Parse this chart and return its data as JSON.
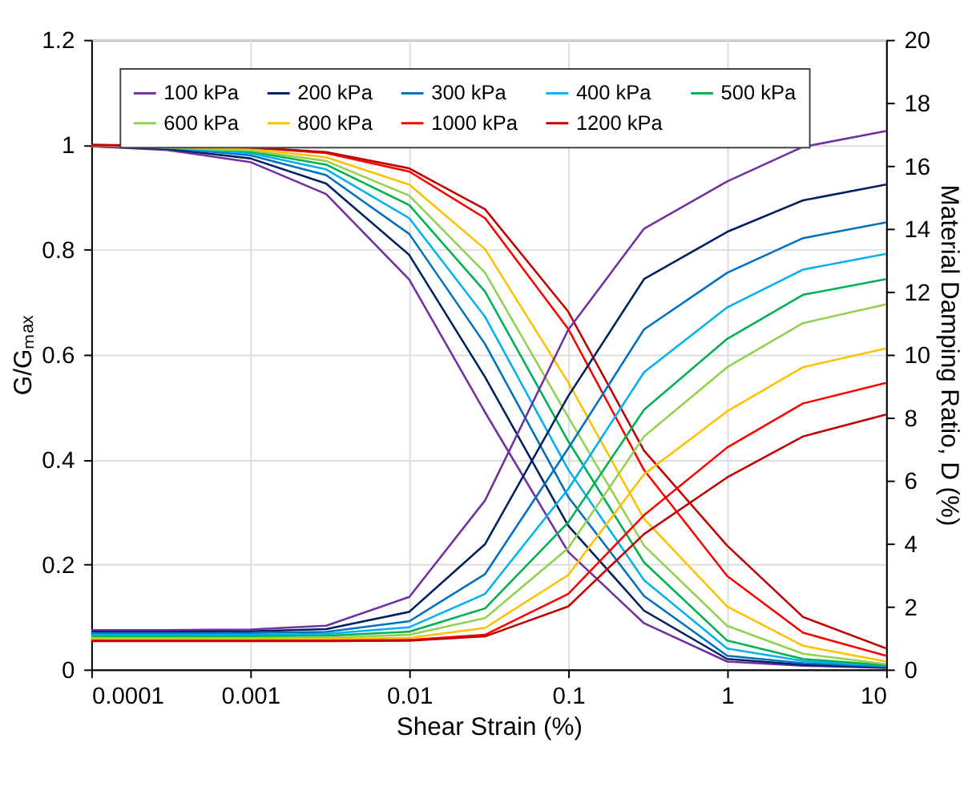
{
  "chart_data": {
    "type": "line",
    "xlabel": "Shear Strain (%)",
    "ylabel": "G/Gₘₐₓ",
    "y2label": "Material Damping Ratio, D (%)",
    "log": "x",
    "xlim": [
      0.0001,
      10
    ],
    "xticks": [
      0.0001,
      0.001,
      0.01,
      0.1,
      1,
      10
    ],
    "ylim": [
      0,
      1.2
    ],
    "yticks": [
      0,
      0.2,
      0.4,
      0.6,
      0.8,
      1,
      1.2
    ],
    "y2lim": [
      0,
      20
    ],
    "y2ticks": [
      0,
      2,
      4,
      6,
      8,
      10,
      12,
      14,
      16,
      18,
      20
    ],
    "grid": true,
    "legend": "top left",
    "x": [
      0.0001,
      0.0003,
      0.001,
      0.003,
      0.01,
      0.03,
      0.1,
      0.3,
      1,
      3,
      10
    ],
    "series": [
      {
        "name": "100 kPa",
        "color": "#7030a0",
        "values": [
          0.997,
          0.99,
          0.967,
          0.906,
          0.743,
          0.49,
          0.224,
          0.088,
          0.015,
          0.007,
          0.003
        ]
      },
      {
        "name": "200 kPa",
        "color": "#002060",
        "values": [
          0.997,
          0.992,
          0.974,
          0.926,
          0.79,
          0.557,
          0.274,
          0.112,
          0.02,
          0.009,
          0.004
        ]
      },
      {
        "name": "300 kPa",
        "color": "#0070c0",
        "values": [
          0.998,
          0.994,
          0.98,
          0.942,
          0.83,
          0.62,
          0.329,
          0.14,
          0.026,
          0.012,
          0.005
        ]
      },
      {
        "name": "400 kPa",
        "color": "#00b0f0",
        "values": [
          0.998,
          0.995,
          0.984,
          0.953,
          0.86,
          0.672,
          0.381,
          0.17,
          0.04,
          0.016,
          0.007
        ]
      },
      {
        "name": "500 kPa",
        "color": "#00b050",
        "values": [
          0.999,
          0.996,
          0.987,
          0.962,
          0.885,
          0.72,
          0.435,
          0.204,
          0.055,
          0.02,
          0.008
        ]
      },
      {
        "name": "600 kPa",
        "color": "#92d050",
        "x": [
          0.0001,
          0.001,
          0.003,
          0.01,
          0.03,
          0.1,
          0.3,
          1,
          3,
          10
        ],
        "values": [
          0.999,
          0.989,
          0.969,
          0.903,
          0.756,
          0.481,
          0.236,
          0.083,
          0.03,
          0.01
        ]
      },
      {
        "name": "800 kPa",
        "color": "#ffc000",
        "x": [
          0.0001,
          0.001,
          0.003,
          0.01,
          0.03,
          0.1,
          0.3,
          1,
          3,
          10
        ],
        "values": [
          0.999,
          0.992,
          0.976,
          0.924,
          0.801,
          0.547,
          0.287,
          0.12,
          0.045,
          0.015
        ]
      },
      {
        "name": "1000 kPa",
        "color": "#ff0000",
        "x": [
          0.0001,
          0.001,
          0.003,
          0.01,
          0.03,
          0.1,
          0.3,
          1,
          3,
          10
        ],
        "values": [
          0.999,
          0.995,
          0.984,
          0.949,
          0.86,
          0.649,
          0.38,
          0.178,
          0.07,
          0.026
        ]
      },
      {
        "name": "1200 kPa",
        "color": "#c00000",
        "x": [
          0.0001,
          0.001,
          0.003,
          0.01,
          0.03,
          0.1,
          0.3,
          1,
          3,
          10
        ],
        "values": [
          1.0,
          0.995,
          0.986,
          0.955,
          0.877,
          0.682,
          0.417,
          0.236,
          0.1,
          0.04
        ]
      },
      {
        "color": "#7030a0",
        "axis": "y2",
        "values": [
          1.25,
          1.25,
          1.27,
          1.39,
          2.3,
          5.37,
          10.79,
          14.0,
          15.5,
          16.6,
          17.1
        ]
      },
      {
        "color": "#002060",
        "axis": "y2",
        "values": [
          1.2,
          1.2,
          1.21,
          1.28,
          1.83,
          3.98,
          8.68,
          12.4,
          13.9,
          14.9,
          15.4
        ]
      },
      {
        "color": "#0070c0",
        "axis": "y2",
        "values": [
          1.15,
          1.15,
          1.16,
          1.19,
          1.53,
          3.03,
          7.02,
          10.8,
          12.6,
          13.7,
          14.2
        ]
      },
      {
        "color": "#00b0f0",
        "axis": "y2",
        "values": [
          1.1,
          1.1,
          1.1,
          1.13,
          1.34,
          2.4,
          5.73,
          9.44,
          11.5,
          12.7,
          13.2
        ]
      },
      {
        "color": "#00b050",
        "axis": "y2",
        "values": [
          1.05,
          1.05,
          1.05,
          1.07,
          1.2,
          1.94,
          4.67,
          8.25,
          10.5,
          11.9,
          12.4
        ]
      },
      {
        "color": "#92d050",
        "axis": "y2",
        "values": [
          1.0,
          1.0,
          1.0,
          1.01,
          1.1,
          1.63,
          3.85,
          7.4,
          9.6,
          11.0,
          11.6
        ]
      },
      {
        "color": "#ffc000",
        "axis": "y2",
        "values": [
          0.95,
          0.95,
          0.95,
          0.96,
          1.0,
          1.32,
          3.0,
          6.2,
          8.2,
          9.6,
          10.2
        ]
      },
      {
        "color": "#ff0000",
        "axis": "y2",
        "values": [
          0.92,
          0.92,
          0.92,
          0.92,
          0.94,
          1.1,
          2.4,
          4.9,
          7.05,
          8.45,
          9.1
        ]
      },
      {
        "color": "#c00000",
        "axis": "y2",
        "values": [
          0.9,
          0.9,
          0.9,
          0.9,
          0.91,
          1.05,
          2.0,
          4.3,
          6.1,
          7.4,
          8.1
        ]
      }
    ]
  }
}
